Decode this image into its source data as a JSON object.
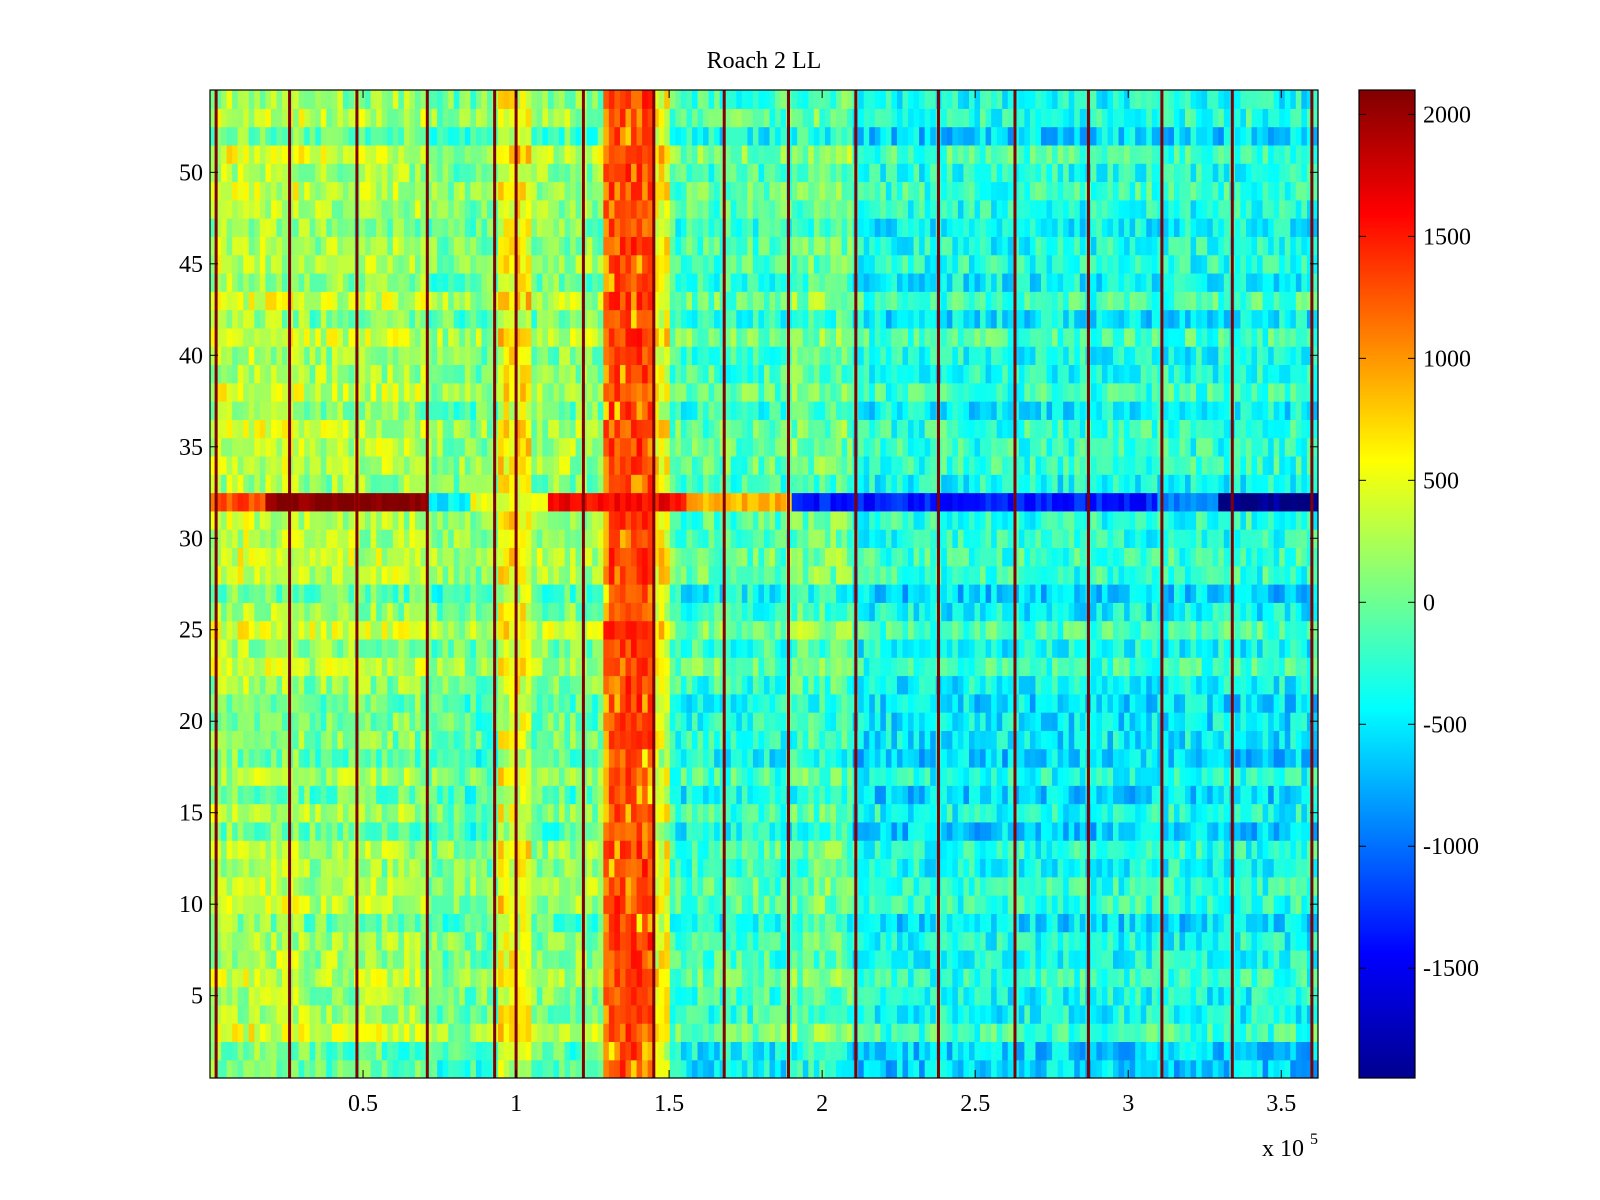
{
  "chart_data": {
    "type": "heatmap",
    "title": "Roach 2 LL",
    "xlabel": "",
    "ylabel": "",
    "x_multiplier_label": "x 10",
    "x_multiplier_exponent": "5",
    "xlim": [
      0,
      3.62
    ],
    "ylim": [
      0.5,
      54.5
    ],
    "rows": 54,
    "columns": 200,
    "x_ticks": [
      0.5,
      1,
      1.5,
      2,
      2.5,
      3,
      3.5
    ],
    "x_tick_labels": [
      "0.5",
      "1",
      "1.5",
      "2",
      "2.5",
      "3",
      "3.5"
    ],
    "y_ticks": [
      5,
      10,
      15,
      20,
      25,
      30,
      35,
      40,
      45,
      50
    ],
    "y_tick_labels": [
      "5",
      "10",
      "15",
      "20",
      "25",
      "30",
      "35",
      "40",
      "45",
      "50"
    ],
    "colormap": "jet",
    "colorbar": {
      "min": -1950,
      "max": 2100,
      "ticks": [
        -1500,
        -1000,
        -500,
        0,
        500,
        1000,
        1500,
        2000
      ],
      "tick_labels": [
        "-1500",
        "-1000",
        "-500",
        "0",
        "500",
        "1000",
        "1500",
        "2000"
      ]
    },
    "column_profile_segments": [
      {
        "x": [
          0.0,
          0.3
        ],
        "value": 280
      },
      {
        "x": [
          0.3,
          0.7
        ],
        "value": 180
      },
      {
        "x": [
          0.7,
          0.95
        ],
        "value": 20
      },
      {
        "x": [
          0.95,
          1.05
        ],
        "value": 560
      },
      {
        "x": [
          1.05,
          1.28
        ],
        "value": 100
      },
      {
        "x": [
          1.28,
          1.45
        ],
        "value": 1050
      },
      {
        "x": [
          1.45,
          1.5
        ],
        "value": 520
      },
      {
        "x": [
          1.5,
          1.9
        ],
        "value": -180
      },
      {
        "x": [
          1.9,
          2.1
        ],
        "value": -70
      },
      {
        "x": [
          2.1,
          3.62
        ],
        "value": -360
      }
    ],
    "hot_band": {
      "x": [
        1.3,
        1.45
      ],
      "y": [
        1,
        54
      ],
      "value": 1500
    },
    "vertical_stripes": {
      "x": [
        0.02,
        0.26,
        0.48,
        0.71,
        0.93,
        1.0,
        1.22,
        1.45,
        1.68,
        1.89,
        2.11,
        2.38,
        2.63,
        2.87,
        3.11,
        3.34,
        3.6
      ],
      "value": 2100
    },
    "row_32_segments": [
      {
        "x": [
          0.0,
          0.19
        ],
        "value": 1300
      },
      {
        "x": [
          0.19,
          0.7
        ],
        "value": 2100
      },
      {
        "x": [
          0.7,
          0.85
        ],
        "value": -500
      },
      {
        "x": [
          0.85,
          1.1
        ],
        "value": 500
      },
      {
        "x": [
          1.1,
          1.55
        ],
        "value": 1600
      },
      {
        "x": [
          1.55,
          1.9
        ],
        "value": 900
      },
      {
        "x": [
          1.9,
          3.1
        ],
        "value": -1350
      },
      {
        "x": [
          3.1,
          3.3
        ],
        "value": -900
      },
      {
        "x": [
          3.3,
          3.62
        ],
        "value": -1900
      }
    ]
  }
}
